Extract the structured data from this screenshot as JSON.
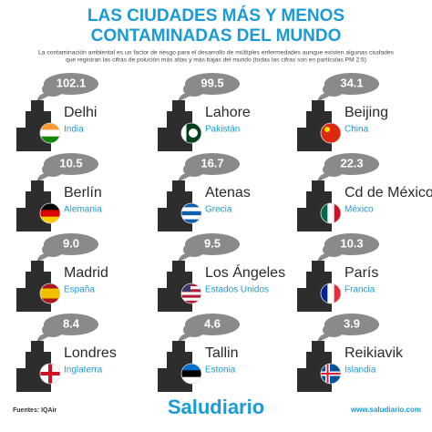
{
  "header": {
    "title_lines": [
      "LAS CIUDADES MÁS Y MENOS",
      "CONTAMINADAS DEL MUNDO"
    ],
    "description_lines": [
      "La contaminación ambiental es un factor de riesgo para el desarrollo de múltiples enfermedades aunque existen algunas ciudades",
      "que registran las cifras de polución más altas y más bajas del mundo (todas las cifras son en partículas PM 2.5)"
    ]
  },
  "cities": [
    {
      "value": "102.1",
      "city": "Delhi",
      "country": "India"
    },
    {
      "value": "99.5",
      "city": "Lahore",
      "country": "Pakistán"
    },
    {
      "value": "34.1",
      "city": "Beijing",
      "country": "China"
    },
    {
      "value": "10.5",
      "city": "Berlín",
      "country": "Alemania"
    },
    {
      "value": "16.7",
      "city": "Atenas",
      "country": "Grecia"
    },
    {
      "value": "22.3",
      "city": "Cd de México",
      "country": "México"
    },
    {
      "value": "9.0",
      "city": "Madrid",
      "country": "España"
    },
    {
      "value": "9.5",
      "city": "Los Ángeles",
      "country": "Estados Unidos"
    },
    {
      "value": "10.3",
      "city": "París",
      "country": "Francia"
    },
    {
      "value": "8.4",
      "city": "Londres",
      "country": "Inglaterra"
    },
    {
      "value": "4.6",
      "city": "Tallin",
      "country": "Estonia"
    },
    {
      "value": "3.9",
      "city": "Reikiavik",
      "country": "Islandia"
    }
  ],
  "footer": {
    "source": "Fuentes: IQAir",
    "brand": "Saludiario",
    "url": "www.saludiario.com"
  }
}
